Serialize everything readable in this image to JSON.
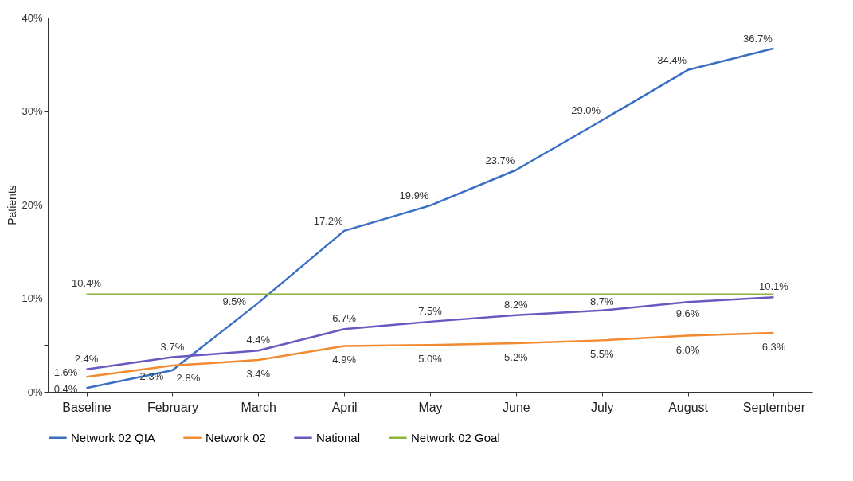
{
  "chart_data": {
    "type": "line",
    "ylabel": "Patients",
    "categories": [
      "Baseline",
      "February",
      "March",
      "April",
      "May",
      "June",
      "July",
      "August",
      "September"
    ],
    "series": [
      {
        "name": "Network 02 QIA",
        "color": "#3a6fc4",
        "values": [
          0.4,
          2.3,
          9.5,
          17.2,
          19.9,
          23.7,
          29.0,
          34.4,
          36.7
        ],
        "value_labels": [
          "0.4%",
          "2.3%",
          "9.5%",
          "17.2%",
          "19.9%",
          "23.7%",
          "29.0%",
          "34.4%",
          "36.7%"
        ]
      },
      {
        "name": "Network 02",
        "color": "#f28a30",
        "values": [
          1.6,
          2.8,
          3.4,
          4.9,
          5.0,
          5.2,
          5.5,
          6.0,
          6.3
        ],
        "value_labels": [
          "1.6%",
          "2.8%",
          "3.4%",
          "4.9%",
          "5.0%",
          "5.2%",
          "5.5%",
          "6.0%",
          "6.3%"
        ]
      },
      {
        "name": "National",
        "color": "#6a58c0",
        "values": [
          2.4,
          3.7,
          4.4,
          6.7,
          7.5,
          8.2,
          8.7,
          9.6,
          10.1
        ],
        "value_labels": [
          "2.4%",
          "3.7%",
          "4.4%",
          "6.7%",
          "7.5%",
          "8.2%",
          "8.7%",
          "9.6%",
          "10.1%"
        ]
      },
      {
        "name": "Network 02 Goal",
        "color": "#8db33a",
        "values": [
          10.4,
          10.4,
          10.4,
          10.4,
          10.4,
          10.4,
          10.4,
          10.4,
          10.4
        ],
        "value_labels": [
          "10.4%",
          null,
          null,
          null,
          null,
          null,
          null,
          null,
          null
        ]
      }
    ],
    "ylim": [
      0,
      40
    ],
    "yticks": [
      {
        "value": 0,
        "label": "0%"
      },
      {
        "value": 5,
        "label": null
      },
      {
        "value": 10,
        "label": "10%"
      },
      {
        "value": 15,
        "label": null
      },
      {
        "value": 20,
        "label": "20%"
      },
      {
        "value": 25,
        "label": null
      },
      {
        "value": 30,
        "label": "30%"
      },
      {
        "value": 35,
        "label": null
      },
      {
        "value": 40,
        "label": "40%"
      }
    ],
    "grid": false,
    "legend": "bottom",
    "marker": "none",
    "line_style": "solid"
  }
}
